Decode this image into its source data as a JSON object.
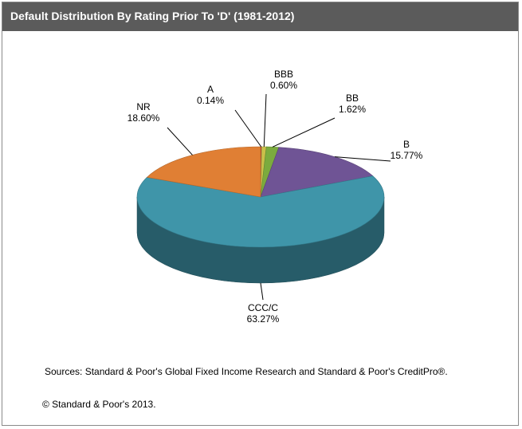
{
  "header": {
    "title": "Default Distribution  By Rating Prior To 'D' (1981-2012)"
  },
  "chart_data": {
    "type": "pie",
    "title": "Default Distribution  By Rating Prior To 'D' (1981-2012)",
    "slices": [
      {
        "label": "A",
        "value": 0.14,
        "value_label": "0.14%",
        "color": "#b23a3a"
      },
      {
        "label": "BBB",
        "value": 0.6,
        "value_label": "0.60%",
        "color": "#c9c04a"
      },
      {
        "label": "BB",
        "value": 1.62,
        "value_label": "1.62%",
        "color": "#7bab3e"
      },
      {
        "label": "B",
        "value": 15.77,
        "value_label": "15.77%",
        "color": "#6f5495"
      },
      {
        "label": "CCC/C",
        "value": 63.27,
        "value_label": "63.27%",
        "color": "#3f95a9"
      },
      {
        "label": "NR",
        "value": 18.6,
        "value_label": "18.60%",
        "color": "#e07f34"
      }
    ]
  },
  "footer": {
    "sources": "Sources: Standard & Poor's Global Fixed Income Research and Standard & Poor's CreditPro®.",
    "copyright": "© Standard & Poor's 2013."
  }
}
